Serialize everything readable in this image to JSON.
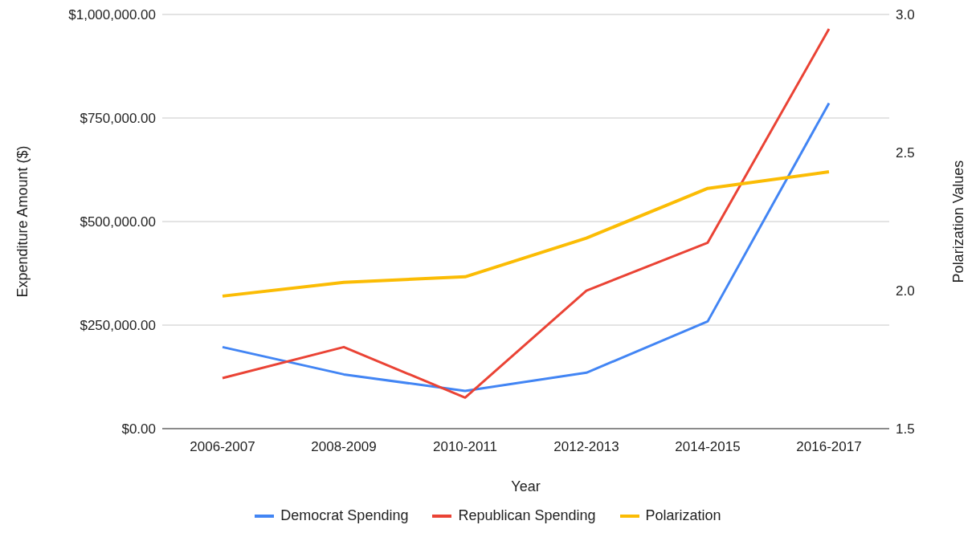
{
  "chart_data": {
    "type": "line",
    "xlabel": "Year",
    "ylabel": "Expenditure Amount ($)",
    "y2label": "Polarization Values",
    "categories": [
      "2006-2007",
      "2008-2009",
      "2010-2011",
      "2012-2013",
      "2014-2015",
      "2016-2017"
    ],
    "series": [
      {
        "name": "Democrat Spending",
        "color": "#4285f4",
        "values": [
          197000,
          131000,
          91000,
          135000,
          259000,
          786000
        ]
      },
      {
        "name": "Republican Spending",
        "color": "#ea4335",
        "values": [
          122000,
          197000,
          75000,
          333000,
          449000,
          965000
        ]
      },
      {
        "name": "Polarization",
        "color": "#fbbc04",
        "axis": "y2",
        "values": [
          1.98,
          2.03,
          2.05,
          2.19,
          2.37,
          2.43
        ]
      }
    ],
    "ylim": [
      0,
      1000000
    ],
    "yticks": [
      {
        "value": 0,
        "label": "$0.00"
      },
      {
        "value": 250000,
        "label": "$250,000.00"
      },
      {
        "value": 500000,
        "label": "$500,000.00"
      },
      {
        "value": 750000,
        "label": "$750,000.00"
      },
      {
        "value": 1000000,
        "label": "$1,000,000.00"
      }
    ],
    "y2lim": [
      1.5,
      3.0
    ],
    "y2ticks": [
      1.5,
      {
        "value": 2.0,
        "label": "2.0"
      },
      2.5,
      {
        "value": 3.0,
        "label": "3.0"
      }
    ],
    "grid": "y",
    "legend": "bottom",
    "marker": "none",
    "line_style": "solid"
  }
}
